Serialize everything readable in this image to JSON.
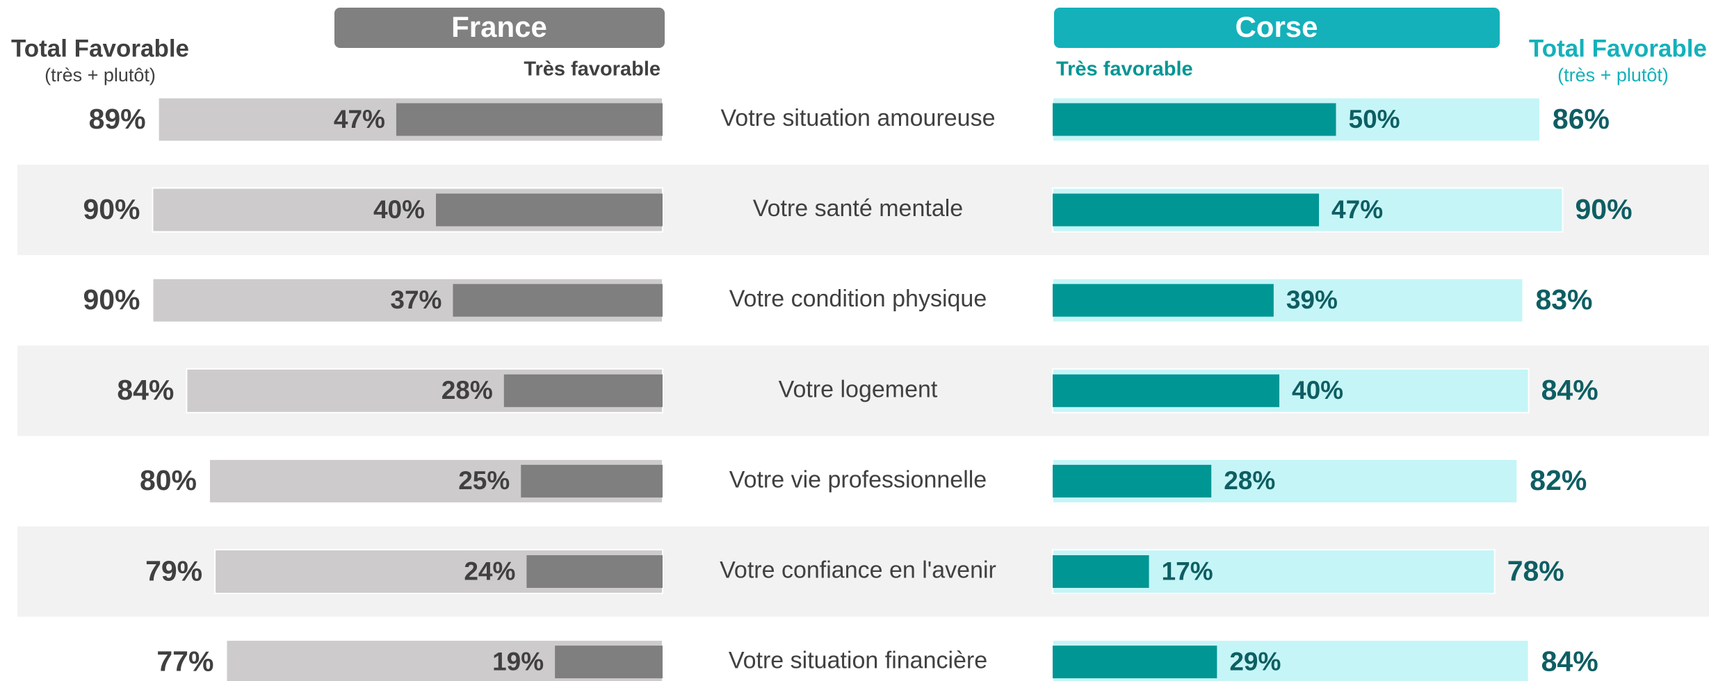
{
  "chart_data": {
    "type": "butterfly",
    "categories": [
      "Votre situation amoureuse",
      "Votre santé mentale",
      "Votre condition physique",
      "Votre logement",
      "Votre vie professionnelle",
      "Votre confiance en l'avenir",
      "Votre situation financière"
    ],
    "groups": [
      {
        "name": "France",
        "color": "#808080",
        "label_color": "#404040",
        "series": [
          {
            "name": "Total Favorable",
            "subtitle": "(très + plutôt)",
            "color": "#cdcbcc",
            "values": [
              89,
              90,
              90,
              84,
              80,
              79,
              77
            ],
            "value_labels": [
              "89%",
              "90%",
              "90%",
              "84%",
              "80%",
              "79%",
              "77%"
            ]
          },
          {
            "name": "Très favorable",
            "color": "#7f7f7f",
            "values": [
              47,
              40,
              37,
              28,
              25,
              24,
              19
            ],
            "value_labels": [
              "47%",
              "40%",
              "37%",
              "28%",
              "25%",
              "24%",
              "19%"
            ]
          }
        ]
      },
      {
        "name": "Corse",
        "color": "#14b1ba",
        "label_color": "#0e5e63",
        "series": [
          {
            "name": "Total Favorable",
            "subtitle": "(très + plutôt)",
            "color": "#c5f5f7",
            "values": [
              86,
              90,
              83,
              84,
              82,
              78,
              84
            ],
            "value_labels": [
              "86%",
              "90%",
              "83%",
              "84%",
              "82%",
              "78%",
              "84%"
            ]
          },
          {
            "name": "Très favorable",
            "color": "#009694",
            "values": [
              50,
              47,
              39,
              40,
              28,
              17,
              29
            ],
            "value_labels": [
              "50%",
              "47%",
              "39%",
              "40%",
              "28%",
              "17%",
              "29%"
            ]
          }
        ]
      }
    ]
  }
}
